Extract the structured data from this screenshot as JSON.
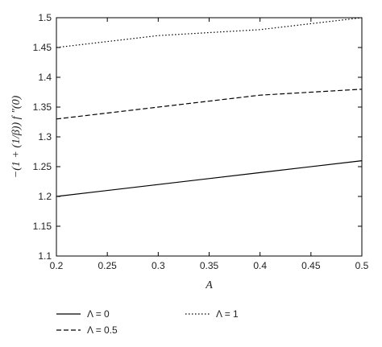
{
  "chart_data": {
    "type": "line",
    "title": "",
    "xlabel": "A",
    "ylabel": "−(1 + (1/β)) f ″(0)",
    "xlim": [
      0.2,
      0.5
    ],
    "ylim": [
      1.1,
      1.5
    ],
    "xticks": [
      "0.2",
      "0.25",
      "0.3",
      "0.35",
      "0.4",
      "0.45",
      "0.5"
    ],
    "yticks": [
      "1.1",
      "1.15",
      "1.2",
      "1.25",
      "1.3",
      "1.35",
      "1.4",
      "1.45",
      "1.5"
    ],
    "grid": false,
    "legend_position": "bottom",
    "x": [
      0.2,
      0.3,
      0.4,
      0.5
    ],
    "series": [
      {
        "name": "Λ = 0",
        "style": "solid",
        "values": [
          1.2,
          1.22,
          1.24,
          1.26
        ]
      },
      {
        "name": "Λ = 0.5",
        "style": "dashed",
        "values": [
          1.33,
          1.35,
          1.37,
          1.38
        ]
      },
      {
        "name": "Λ = 1",
        "style": "dotted",
        "values": [
          1.45,
          1.47,
          1.48,
          1.5
        ]
      }
    ],
    "colors": {
      "line": "#000000",
      "axis": "#000000"
    }
  }
}
